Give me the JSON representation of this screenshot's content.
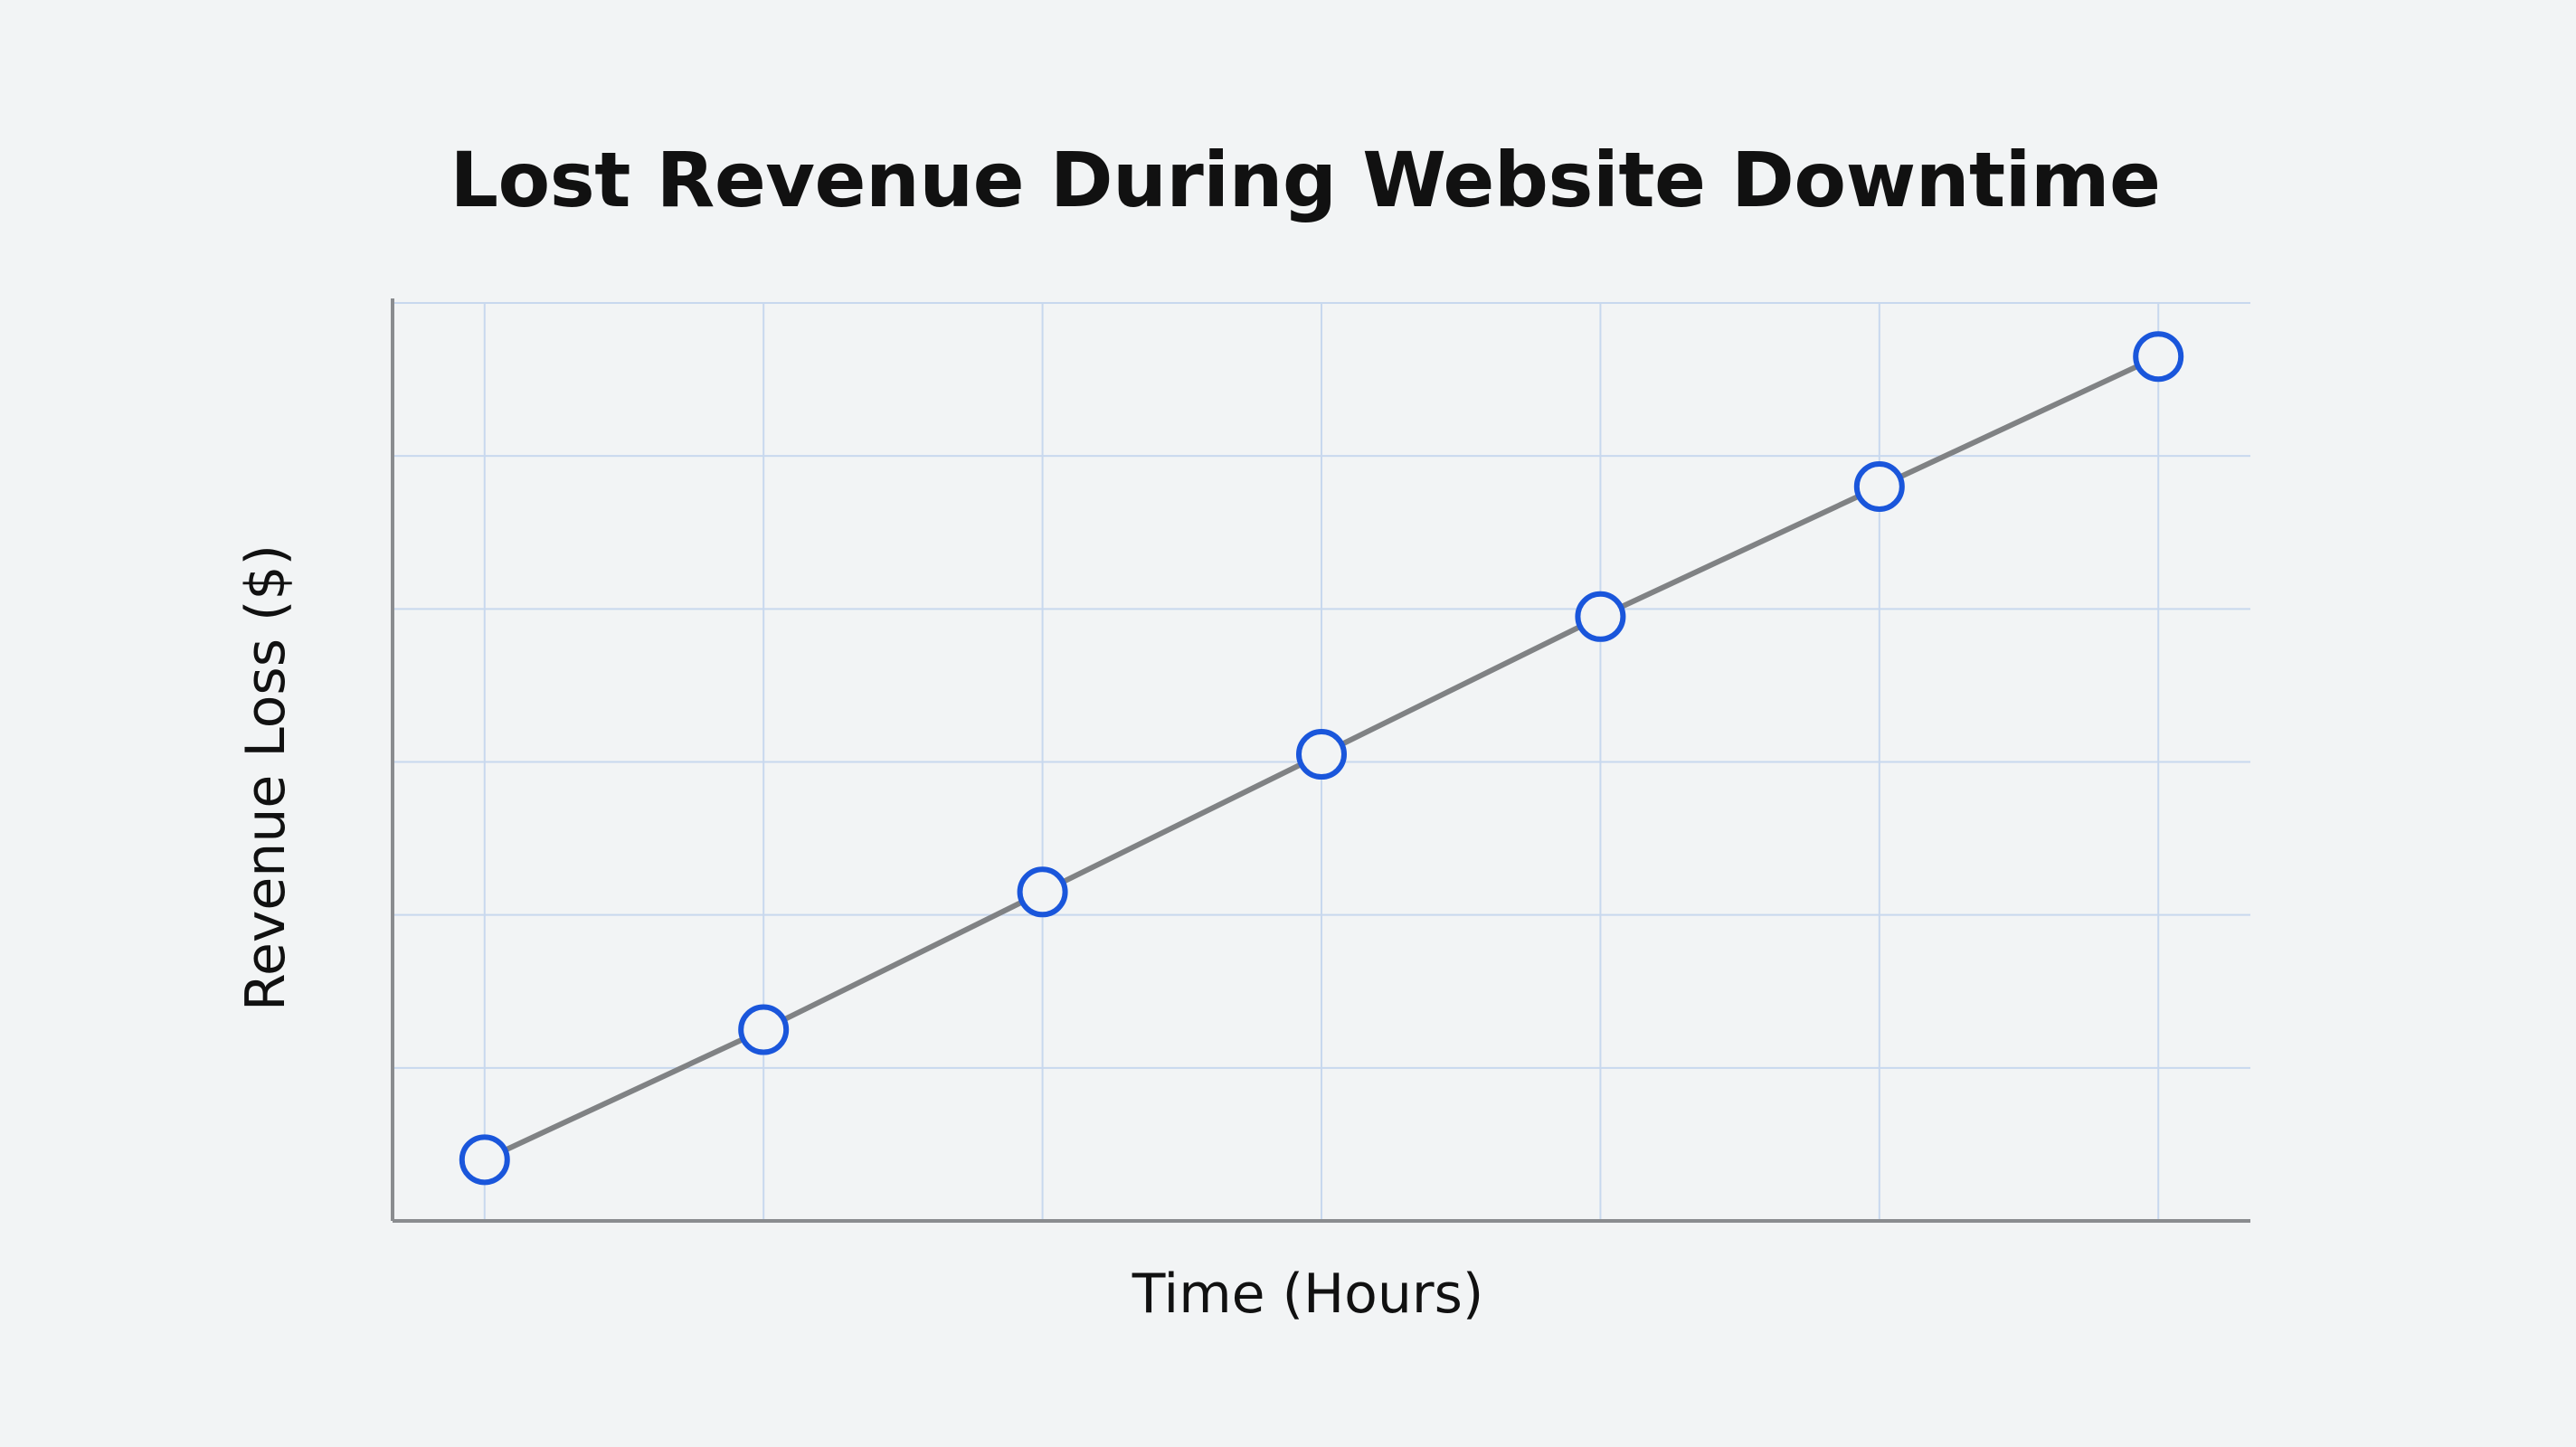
{
  "chart_data": {
    "type": "line",
    "title": "Lost Revenue During Website Downtime",
    "xlabel": "Time (Hours)",
    "ylabel": "Revenue Loss ($)",
    "x": [
      0,
      1,
      2,
      3,
      4,
      5,
      6
    ],
    "series": [
      {
        "values": [
          0.4,
          1.25,
          2.15,
          3.05,
          3.95,
          4.8,
          5.65
        ]
      }
    ],
    "xlim": [
      -0.33,
      6.33
    ],
    "ylim": [
      0,
      6
    ],
    "grid": true,
    "tick_labels_shown": false,
    "colors": {
      "line": "#808284",
      "marker": "#1a56db",
      "grid": "#c8d8ee",
      "axis": "#8a8c8f",
      "background": "#f2f4f5"
    }
  }
}
